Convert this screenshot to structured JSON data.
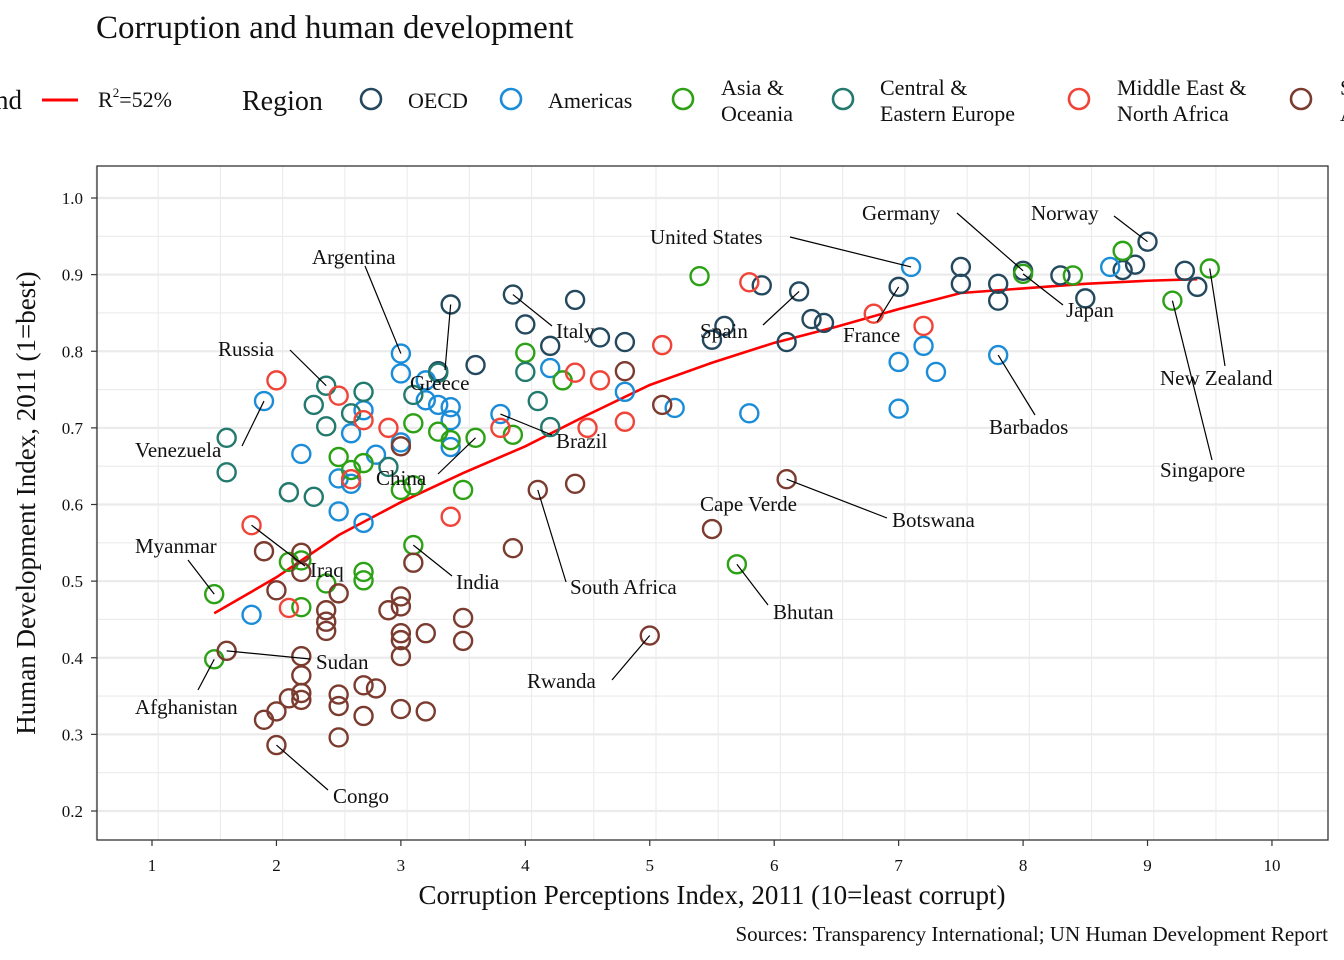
{
  "chart_data": {
    "type": "scatter",
    "title": "Corruption and human development",
    "xlabel": "Corruption Perceptions Index, 2011 (10=least corrupt)",
    "ylabel": "Human Development Index, 2011 (1=best)",
    "caption": "Sources: Transparency International; UN Human Development Report",
    "xlim": [
      0.56,
      10.45
    ],
    "ylim": [
      0.162,
      1.042
    ],
    "x_ticks": [
      "1",
      "2",
      "3",
      "4",
      "5",
      "6",
      "7",
      "8",
      "9",
      "10"
    ],
    "y_ticks": [
      "0.2",
      "0.3",
      "0.4",
      "0.5",
      "0.6",
      "0.7",
      "0.8",
      "0.9",
      "1.0"
    ],
    "grid": true,
    "legend": {
      "placement": "top",
      "trend_title": "Trend",
      "trend_label": "R²=52%",
      "trend_label_base": "R",
      "trend_label_sup": "2",
      "trend_label_rest": "=52%",
      "region_title": "Region",
      "regions": [
        {
          "key": "oecd",
          "line1": "OECD",
          "line2": "",
          "color": "#24495E"
        },
        {
          "key": "americas",
          "line1": "Americas",
          "line2": "",
          "color": "#1A8CD8"
        },
        {
          "key": "asia",
          "line1": "Asia &",
          "line2": "Oceania",
          "color": "#2CA115"
        },
        {
          "key": "cee",
          "line1": "Central &",
          "line2": "Eastern Europe",
          "color": "#22796D"
        },
        {
          "key": "mena",
          "line1": "Middle East &",
          "line2": "North Africa",
          "color": "#F04438"
        },
        {
          "key": "ssa",
          "line1": "Sub-Saharan",
          "line2": "Africa",
          "color": "#7B3B2E"
        }
      ]
    },
    "trend": {
      "color": "#FF0000",
      "points": [
        [
          1.5,
          0.458
        ],
        [
          2,
          0.505
        ],
        [
          2.5,
          0.56
        ],
        [
          3,
          0.603
        ],
        [
          3.5,
          0.641
        ],
        [
          4,
          0.676
        ],
        [
          4.5,
          0.717
        ],
        [
          5,
          0.756
        ],
        [
          5.5,
          0.785
        ],
        [
          6,
          0.811
        ],
        [
          6.5,
          0.832
        ],
        [
          7,
          0.855
        ],
        [
          7.5,
          0.876
        ],
        [
          8,
          0.882
        ],
        [
          8.5,
          0.888
        ],
        [
          9,
          0.892
        ],
        [
          9.4,
          0.894
        ]
      ]
    },
    "series": [
      {
        "region": "oecd",
        "points": [
          [
            3.4,
            0.861
          ],
          [
            3.3,
            0.774
          ],
          [
            3.6,
            0.782
          ],
          [
            3.9,
            0.874
          ],
          [
            4.0,
            0.835
          ],
          [
            4.2,
            0.807
          ],
          [
            4.4,
            0.867
          ],
          [
            4.6,
            0.818
          ],
          [
            4.8,
            0.812
          ],
          [
            5.5,
            0.815
          ],
          [
            5.6,
            0.833
          ],
          [
            5.9,
            0.886
          ],
          [
            6.2,
            0.878
          ],
          [
            6.1,
            0.812
          ],
          [
            6.3,
            0.842
          ],
          [
            6.4,
            0.837
          ],
          [
            7.0,
            0.884
          ],
          [
            7.5,
            0.91
          ],
          [
            7.5,
            0.888
          ],
          [
            7.8,
            0.888
          ],
          [
            7.8,
            0.866
          ],
          [
            8.0,
            0.905
          ],
          [
            8.3,
            0.899
          ],
          [
            8.5,
            0.869
          ],
          [
            8.8,
            0.906
          ],
          [
            8.9,
            0.913
          ],
          [
            9.0,
            0.943
          ],
          [
            9.3,
            0.905
          ],
          [
            9.4,
            0.884
          ]
        ]
      },
      {
        "region": "americas",
        "points": [
          [
            1.9,
            0.735
          ],
          [
            1.8,
            0.456
          ],
          [
            2.2,
            0.666
          ],
          [
            2.5,
            0.634
          ],
          [
            2.5,
            0.591
          ],
          [
            2.6,
            0.693
          ],
          [
            2.6,
            0.627
          ],
          [
            2.7,
            0.723
          ],
          [
            2.7,
            0.576
          ],
          [
            2.8,
            0.665
          ],
          [
            3.0,
            0.797
          ],
          [
            3.0,
            0.771
          ],
          [
            3.0,
            0.681
          ],
          [
            3.2,
            0.762
          ],
          [
            3.2,
            0.736
          ],
          [
            3.3,
            0.73
          ],
          [
            3.4,
            0.727
          ],
          [
            3.4,
            0.71
          ],
          [
            3.4,
            0.675
          ],
          [
            3.8,
            0.718
          ],
          [
            4.2,
            0.778
          ],
          [
            4.8,
            0.747
          ],
          [
            5.2,
            0.726
          ],
          [
            5.8,
            0.719
          ],
          [
            7.1,
            0.91
          ],
          [
            7.0,
            0.786
          ],
          [
            7.0,
            0.725
          ],
          [
            7.2,
            0.807
          ],
          [
            7.3,
            0.773
          ],
          [
            7.8,
            0.795
          ],
          [
            8.7,
            0.91
          ]
        ]
      },
      {
        "region": "asia",
        "points": [
          [
            1.5,
            0.483
          ],
          [
            1.5,
            0.398
          ],
          [
            2.1,
            0.525
          ],
          [
            2.2,
            0.527
          ],
          [
            2.2,
            0.466
          ],
          [
            2.4,
            0.497
          ],
          [
            2.5,
            0.662
          ],
          [
            2.6,
            0.645
          ],
          [
            2.7,
            0.654
          ],
          [
            2.7,
            0.512
          ],
          [
            2.7,
            0.501
          ],
          [
            3.0,
            0.619
          ],
          [
            3.1,
            0.706
          ],
          [
            3.1,
            0.625
          ],
          [
            3.1,
            0.547
          ],
          [
            3.3,
            0.695
          ],
          [
            3.4,
            0.684
          ],
          [
            3.6,
            0.687
          ],
          [
            3.5,
            0.619
          ],
          [
            3.9,
            0.691
          ],
          [
            4.0,
            0.798
          ],
          [
            4.3,
            0.762
          ],
          [
            5.4,
            0.898
          ],
          [
            5.7,
            0.522
          ],
          [
            8.0,
            0.901
          ],
          [
            8.4,
            0.899
          ],
          [
            8.8,
            0.931
          ],
          [
            9.2,
            0.866
          ],
          [
            9.5,
            0.908
          ]
        ]
      },
      {
        "region": "cee",
        "points": [
          [
            1.6,
            0.687
          ],
          [
            1.6,
            0.642
          ],
          [
            2.1,
            0.616
          ],
          [
            2.3,
            0.73
          ],
          [
            2.3,
            0.61
          ],
          [
            2.4,
            0.755
          ],
          [
            2.4,
            0.702
          ],
          [
            2.6,
            0.719
          ],
          [
            2.7,
            0.747
          ],
          [
            2.9,
            0.649
          ],
          [
            3.1,
            0.743
          ],
          [
            3.3,
            0.772
          ],
          [
            4.0,
            0.773
          ],
          [
            4.1,
            0.735
          ],
          [
            4.2,
            0.701
          ]
        ]
      },
      {
        "region": "mena",
        "points": [
          [
            2.0,
            0.762
          ],
          [
            1.8,
            0.573
          ],
          [
            2.1,
            0.465
          ],
          [
            2.5,
            0.742
          ],
          [
            2.6,
            0.633
          ],
          [
            2.7,
            0.71
          ],
          [
            2.9,
            0.7
          ],
          [
            3.4,
            0.584
          ],
          [
            3.8,
            0.7
          ],
          [
            4.4,
            0.772
          ],
          [
            4.5,
            0.7
          ],
          [
            4.6,
            0.762
          ],
          [
            4.8,
            0.708
          ],
          [
            5.1,
            0.808
          ],
          [
            5.8,
            0.89
          ],
          [
            6.8,
            0.849
          ],
          [
            7.2,
            0.833
          ]
        ]
      },
      {
        "region": "ssa",
        "points": [
          [
            1.6,
            0.409
          ],
          [
            1.9,
            0.539
          ],
          [
            1.9,
            0.319
          ],
          [
            2.0,
            0.488
          ],
          [
            2.0,
            0.33
          ],
          [
            2.0,
            0.286
          ],
          [
            2.1,
            0.347
          ],
          [
            2.2,
            0.537
          ],
          [
            2.2,
            0.512
          ],
          [
            2.2,
            0.402
          ],
          [
            2.2,
            0.377
          ],
          [
            2.2,
            0.354
          ],
          [
            2.2,
            0.345
          ],
          [
            2.4,
            0.462
          ],
          [
            2.4,
            0.447
          ],
          [
            2.4,
            0.435
          ],
          [
            2.5,
            0.484
          ],
          [
            2.5,
            0.352
          ],
          [
            2.5,
            0.337
          ],
          [
            2.5,
            0.296
          ],
          [
            2.7,
            0.364
          ],
          [
            2.7,
            0.324
          ],
          [
            2.8,
            0.36
          ],
          [
            2.9,
            0.462
          ],
          [
            3.0,
            0.48
          ],
          [
            3.0,
            0.467
          ],
          [
            3.0,
            0.432
          ],
          [
            3.0,
            0.423
          ],
          [
            3.0,
            0.402
          ],
          [
            3.0,
            0.333
          ],
          [
            3.0,
            0.676
          ],
          [
            3.1,
            0.524
          ],
          [
            3.2,
            0.432
          ],
          [
            3.2,
            0.33
          ],
          [
            3.5,
            0.452
          ],
          [
            3.5,
            0.422
          ],
          [
            3.9,
            0.543
          ],
          [
            4.1,
            0.619
          ],
          [
            4.4,
            0.627
          ],
          [
            4.8,
            0.774
          ],
          [
            5.0,
            0.429
          ],
          [
            5.1,
            0.73
          ],
          [
            5.5,
            0.568
          ],
          [
            6.1,
            0.633
          ]
        ]
      }
    ],
    "annotations": [
      {
        "label": "Congo",
        "x": 2.0,
        "y": 0.286
      },
      {
        "label": "Sudan",
        "x": 1.6,
        "y": 0.409
      },
      {
        "label": "Afghanistan",
        "x": 1.5,
        "y": 0.398
      },
      {
        "label": "Myanmar",
        "x": 1.5,
        "y": 0.483
      },
      {
        "label": "Iraq",
        "x": 1.8,
        "y": 0.573
      },
      {
        "label": "Venezuela",
        "x": 1.9,
        "y": 0.735
      },
      {
        "label": "Russia",
        "x": 2.4,
        "y": 0.755
      },
      {
        "label": "Argentina",
        "x": 3.0,
        "y": 0.797
      },
      {
        "label": "Greece",
        "x": 3.4,
        "y": 0.861
      },
      {
        "label": "China",
        "x": 3.6,
        "y": 0.687
      },
      {
        "label": "India",
        "x": 3.1,
        "y": 0.547
      },
      {
        "label": "Brazil",
        "x": 3.8,
        "y": 0.718
      },
      {
        "label": "South Africa",
        "x": 4.1,
        "y": 0.619
      },
      {
        "label": "Italy",
        "x": 3.9,
        "y": 0.874
      },
      {
        "label": "Rwanda",
        "x": 5.0,
        "y": 0.429
      },
      {
        "label": "Cape Verde",
        "x": 5.5,
        "y": 0.568
      },
      {
        "label": "Bhutan",
        "x": 5.7,
        "y": 0.522
      },
      {
        "label": "Botswana",
        "x": 6.1,
        "y": 0.633
      },
      {
        "label": "Spain",
        "x": 6.2,
        "y": 0.878
      },
      {
        "label": "France",
        "x": 7.0,
        "y": 0.884
      },
      {
        "label": "United States",
        "x": 7.1,
        "y": 0.91
      },
      {
        "label": "Germany",
        "x": 8.0,
        "y": 0.905
      },
      {
        "label": "Japan",
        "x": 8.0,
        "y": 0.901
      },
      {
        "label": "Norway",
        "x": 9.0,
        "y": 0.943
      },
      {
        "label": "Barbados",
        "x": 7.8,
        "y": 0.795
      },
      {
        "label": "New Zealand",
        "x": 9.5,
        "y": 0.908
      },
      {
        "label": "Singapore",
        "x": 9.2,
        "y": 0.866
      }
    ]
  }
}
